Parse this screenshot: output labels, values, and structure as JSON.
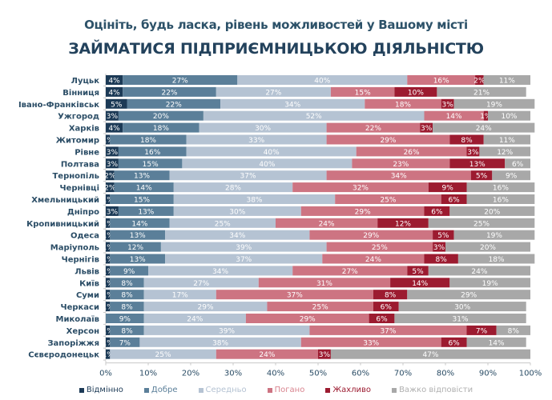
{
  "chart_data": {
    "type": "bar",
    "orientation": "horizontal-stacked-100",
    "subtitle": "Оцініть, будь ласка, рівень можливостей у Вашому місті",
    "title": "ЗАЙМАТИСЯ ПІДПРИЄМНИЦЬКОЮ ДІЯЛЬНІСТЮ",
    "xlabel": "",
    "ylabel": "",
    "xlim": [
      0,
      100
    ],
    "x_ticks": [
      "0%",
      "10%",
      "20%",
      "30%",
      "40%",
      "50%",
      "60%",
      "70%",
      "80%",
      "90%",
      "100%"
    ],
    "legend_position": "bottom",
    "categories": [
      "Луцьк",
      "Вінниця",
      "Івано-Франківськ",
      "Ужгород",
      "Харків",
      "Житомир",
      "Рівне",
      "Полтава",
      "Тернопіль",
      "Чернівці",
      "Хмельницький",
      "Дніпро",
      "Кропивницький",
      "Одеса",
      "Маріуполь",
      "Чернігів",
      "Львів",
      "Київ",
      "Суми",
      "Черкаси",
      "Миколаїв",
      "Херсон",
      "Запоріжжя",
      "Сєвєродонецьк"
    ],
    "series": [
      {
        "name": "Відмінно",
        "color": "#1c3a56",
        "label_color": "#1c3a56",
        "values": [
          4,
          4,
          5,
          3,
          4,
          1,
          3,
          3,
          2,
          2,
          1,
          3,
          1,
          1,
          1,
          1,
          1,
          1,
          1,
          1,
          0,
          1,
          1,
          1
        ]
      },
      {
        "name": "Добре",
        "color": "#5b7f99",
        "label_color": "#5b7f99",
        "values": [
          27,
          22,
          22,
          20,
          18,
          18,
          16,
          15,
          13,
          14,
          15,
          13,
          14,
          13,
          12,
          13,
          9,
          8,
          8,
          8,
          9,
          8,
          7,
          0
        ]
      },
      {
        "name": "Середньо",
        "color": "#b5c3d3",
        "label_color": "#b5c3d3",
        "values": [
          40,
          27,
          34,
          52,
          30,
          33,
          40,
          40,
          37,
          28,
          38,
          30,
          25,
          34,
          39,
          37,
          34,
          27,
          17,
          29,
          24,
          39,
          38,
          25
        ]
      },
      {
        "name": "Погано",
        "color": "#cd7482",
        "label_color": "#d9848f",
        "values": [
          16,
          15,
          18,
          14,
          22,
          29,
          26,
          23,
          34,
          32,
          25,
          29,
          24,
          29,
          25,
          24,
          27,
          31,
          37,
          25,
          29,
          37,
          33,
          24
        ]
      },
      {
        "name": "Жахливо",
        "color": "#9c1b30",
        "label_color": "#9c1b30",
        "values": [
          2,
          10,
          3,
          1,
          3,
          8,
          3,
          13,
          5,
          9,
          6,
          6,
          12,
          5,
          3,
          8,
          5,
          14,
          8,
          6,
          6,
          7,
          6,
          3
        ]
      },
      {
        "name": "Важко відповісти",
        "color": "#a8a8a8",
        "label_color": "#b0b0b0",
        "values": [
          11,
          21,
          19,
          10,
          24,
          11,
          12,
          6,
          9,
          16,
          16,
          20,
          25,
          19,
          20,
          18,
          24,
          19,
          29,
          30,
          31,
          8,
          14,
          47
        ]
      }
    ]
  }
}
